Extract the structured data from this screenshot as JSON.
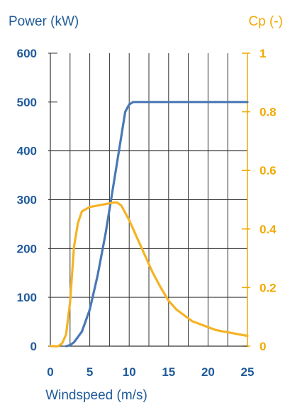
{
  "colors": {
    "power": "#4a78b5",
    "cp": "#f5b324",
    "left_axis_text": "#1f5a9a",
    "right_axis_text": "#f2a900",
    "grid": "#333333"
  },
  "chart_data": {
    "type": "line",
    "title": "",
    "left_axis_label": "Power (kW)",
    "right_axis_label": "Cp (-)",
    "xlabel": "Windspeed (m/s)",
    "xlim": [
      0,
      25
    ],
    "ylim_left": [
      0,
      600
    ],
    "ylim_right": [
      0,
      1
    ],
    "grid": true,
    "legend": "none",
    "x_ticks": [
      "0",
      "5",
      "10",
      "15",
      "20",
      "25"
    ],
    "y_left_ticks": [
      "0",
      "100",
      "200",
      "300",
      "400",
      "500",
      "600"
    ],
    "y_right_ticks": [
      "0",
      "0.2",
      "0.4",
      "0.6",
      "0.8",
      "1"
    ],
    "series": [
      {
        "axis": "left",
        "x": [
          2,
          2.5,
          3,
          4,
          5,
          6,
          7,
          8,
          9,
          9.5,
          10,
          10.5,
          12,
          15,
          20,
          25
        ],
        "y": [
          0,
          2,
          8,
          30,
          75,
          145,
          230,
          330,
          430,
          480,
          495,
          500,
          500,
          500,
          500,
          500
        ]
      },
      {
        "axis": "right",
        "x": [
          0,
          1,
          1.5,
          2,
          2.5,
          3,
          3.5,
          4,
          5,
          6,
          7,
          8,
          8.5,
          9,
          10,
          11,
          12,
          13,
          14,
          15,
          16,
          17,
          18,
          19,
          20,
          21,
          22,
          23,
          24,
          25
        ],
        "y": [
          0,
          0,
          0.01,
          0.04,
          0.15,
          0.34,
          0.42,
          0.46,
          0.475,
          0.48,
          0.485,
          0.49,
          0.49,
          0.48,
          0.43,
          0.37,
          0.31,
          0.25,
          0.2,
          0.155,
          0.125,
          0.105,
          0.085,
          0.075,
          0.065,
          0.055,
          0.05,
          0.045,
          0.04,
          0.035
        ]
      }
    ]
  }
}
